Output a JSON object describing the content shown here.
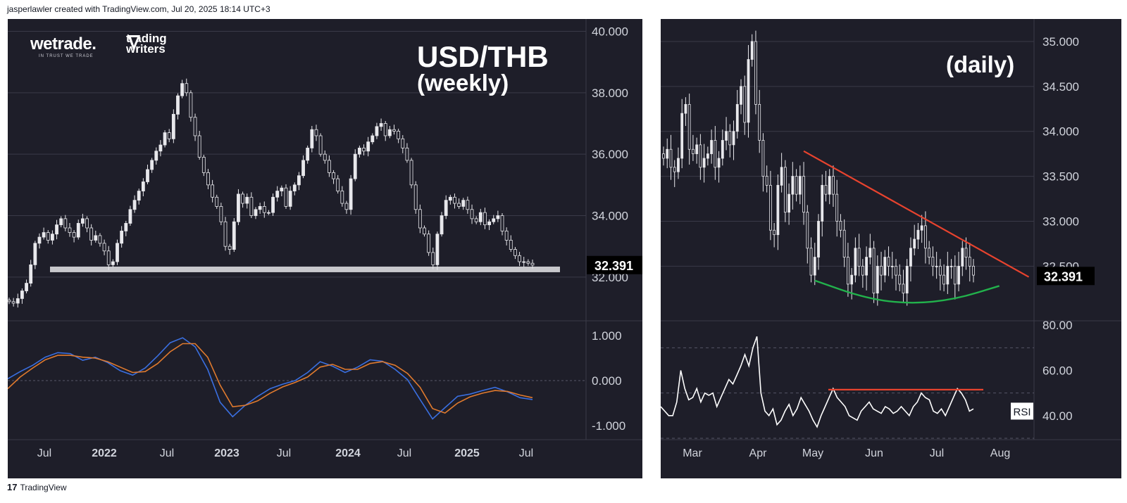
{
  "header": {
    "credit": "jasperlawler created with TradingView.com, Jul 20, 2025 18:14 UTC+3"
  },
  "footer": {
    "logo_mark": "17",
    "logo_text": "TradingView"
  },
  "branding": {
    "wetrade": "wetrade.",
    "wetrade_sub": "IN TRUST WE TRADE",
    "tw_line1": "trading",
    "tw_line2": "writers"
  },
  "colors": {
    "background": "#1e1e29",
    "candle": "#e8e8ec",
    "support": "#c8c8cc",
    "macd": "#3a6fe0",
    "signal": "#e07a2e",
    "trend": "#e8432e",
    "curve": "#22b24c",
    "rsi": "#ffffff",
    "rsi_level": "#e8432e",
    "grid": "#3a3a48"
  },
  "chart_data": [
    {
      "type": "candlestick",
      "title": "USD/THB",
      "subtitle": "(weekly)",
      "x_ticks": [
        "Jul",
        "2022",
        "Jul",
        "2023",
        "Jul",
        "2024",
        "Jul",
        "2025",
        "Jul"
      ],
      "y_ticks": [
        "40.000",
        "38.000",
        "36.000",
        "34.000",
        "32.000"
      ],
      "ylim": [
        30.6,
        40.4
      ],
      "last_price": "32.391",
      "support_level": 32.25,
      "closes": [
        31.2,
        31.15,
        31.3,
        31.55,
        31.8,
        32.4,
        33.1,
        33.3,
        33.45,
        33.2,
        33.4,
        33.7,
        33.9,
        33.6,
        33.45,
        33.3,
        33.75,
        33.9,
        33.6,
        33.2,
        33.35,
        33.1,
        32.85,
        32.4,
        32.5,
        33.1,
        33.5,
        33.75,
        34.2,
        34.5,
        34.8,
        35.1,
        35.5,
        35.8,
        36.1,
        36.3,
        36.7,
        36.5,
        37.3,
        37.9,
        38.3,
        38.0,
        37.2,
        36.6,
        35.9,
        35.4,
        35.0,
        34.6,
        34.3,
        33.8,
        33.0,
        32.9,
        33.8,
        34.7,
        34.4,
        34.6,
        34.0,
        34.2,
        34.3,
        34.1,
        34.1,
        34.6,
        34.8,
        34.9,
        34.3,
        34.8,
        35.0,
        35.3,
        35.8,
        36.2,
        36.8,
        36.6,
        36.0,
        35.8,
        35.4,
        35.2,
        34.8,
        34.4,
        34.2,
        35.2,
        36.0,
        36.2,
        36.1,
        36.4,
        36.6,
        36.9,
        37.0,
        36.6,
        36.8,
        36.75,
        36.5,
        36.2,
        35.8,
        35.0,
        34.2,
        33.6,
        33.4,
        32.8,
        32.4,
        33.4,
        34.0,
        34.5,
        34.6,
        34.4,
        34.3,
        34.5,
        34.2,
        33.9,
        33.8,
        34.1,
        33.7,
        33.8,
        33.9,
        34.0,
        33.5,
        33.2,
        32.9,
        32.7,
        32.5,
        32.5,
        32.45,
        32.39
      ],
      "macd": [
        0.04,
        0.2,
        0.34,
        0.52,
        0.62,
        0.6,
        0.45,
        0.52,
        0.4,
        0.22,
        0.12,
        0.28,
        0.55,
        0.84,
        0.95,
        0.75,
        0.25,
        -0.48,
        -0.8,
        -0.55,
        -0.35,
        -0.18,
        -0.08,
        0.0,
        0.18,
        0.42,
        0.32,
        0.18,
        0.3,
        0.46,
        0.43,
        0.25,
        0.02,
        -0.42,
        -0.85,
        -0.6,
        -0.35,
        -0.3,
        -0.22,
        -0.15,
        -0.25,
        -0.38,
        -0.42
      ],
      "signal": [
        -0.18,
        0.08,
        0.28,
        0.46,
        0.56,
        0.56,
        0.52,
        0.5,
        0.42,
        0.3,
        0.18,
        0.2,
        0.38,
        0.64,
        0.82,
        0.82,
        0.52,
        -0.1,
        -0.58,
        -0.55,
        -0.45,
        -0.28,
        -0.14,
        -0.04,
        0.08,
        0.3,
        0.36,
        0.25,
        0.25,
        0.38,
        0.42,
        0.34,
        0.16,
        -0.15,
        -0.62,
        -0.72,
        -0.5,
        -0.36,
        -0.28,
        -0.22,
        -0.24,
        -0.32,
        -0.38
      ],
      "indicator_ticks": [
        "1.000",
        "0.000",
        "-1.000"
      ],
      "indicator_ylim": [
        -1.28,
        1.28
      ]
    },
    {
      "type": "candlestick",
      "title": "(daily)",
      "x_ticks": [
        "Mar",
        "Apr",
        "May",
        "Jun",
        "Jul",
        "Aug"
      ],
      "y_ticks": [
        "35.000",
        "34.500",
        "34.000",
        "33.500",
        "33.000",
        "32.500"
      ],
      "ylim": [
        31.9,
        35.25
      ],
      "last_price": "32.391",
      "closes": [
        33.7,
        33.8,
        33.6,
        33.55,
        33.7,
        34.2,
        34.3,
        33.8,
        33.75,
        33.85,
        33.6,
        33.7,
        33.75,
        33.9,
        33.6,
        33.7,
        33.9,
        34.0,
        33.85,
        34.0,
        34.3,
        34.5,
        34.1,
        34.8,
        35.0,
        34.3,
        33.9,
        33.5,
        33.4,
        32.9,
        32.85,
        33.4,
        33.6,
        33.1,
        33.3,
        33.5,
        33.3,
        33.5,
        33.1,
        32.7,
        32.4,
        32.6,
        33.0,
        33.4,
        33.3,
        33.5,
        33.3,
        33.0,
        32.9,
        32.6,
        32.3,
        32.4,
        32.7,
        32.5,
        32.4,
        32.6,
        32.7,
        32.2,
        32.5,
        32.4,
        32.6,
        32.5,
        32.5,
        32.4,
        32.3,
        32.2,
        32.5,
        32.7,
        32.8,
        32.9,
        32.95,
        32.7,
        32.6,
        32.5,
        32.5,
        32.4,
        32.3,
        32.5,
        32.5,
        32.3,
        32.5,
        32.7,
        32.6,
        32.5,
        32.4
      ],
      "trendline": [
        [
          38,
          33.78
        ],
        [
          99,
          32.38
        ]
      ],
      "curve": [
        [
          41,
          32.34
        ],
        [
          55,
          32.14
        ],
        [
          67,
          32.08
        ],
        [
          79,
          32.13
        ],
        [
          91,
          32.28
        ]
      ],
      "rsi": [
        44,
        42,
        40,
        40,
        46,
        60,
        52,
        47,
        48,
        52,
        46,
        50,
        49,
        50,
        44,
        48,
        52,
        56,
        54,
        58,
        62,
        67,
        62,
        70,
        75,
        50,
        42,
        40,
        43,
        36,
        38,
        42,
        45,
        40,
        43,
        48,
        45,
        42,
        38,
        35,
        40,
        44,
        48,
        52,
        48,
        46,
        44,
        40,
        39,
        38,
        42,
        44,
        46,
        43,
        42,
        41,
        44,
        43,
        41,
        42,
        44,
        42,
        40,
        44,
        46,
        50,
        48,
        47,
        42,
        41,
        43,
        40,
        44,
        48,
        52,
        50,
        47,
        42,
        43
      ],
      "rsi_level": 51.5,
      "rsi_label": "RSI",
      "indicator_ticks": [
        "80.00",
        "60.00",
        "40.00"
      ],
      "indicator_ylim": [
        30,
        81
      ]
    }
  ]
}
